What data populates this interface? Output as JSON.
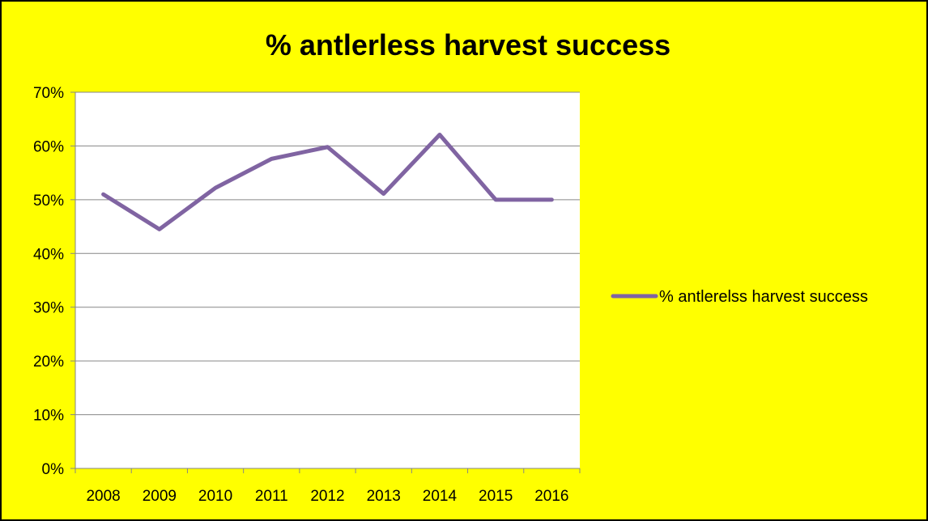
{
  "chart_data": {
    "type": "line",
    "title": "% antlerless harvest success",
    "categories": [
      "2008",
      "2009",
      "2010",
      "2011",
      "2012",
      "2013",
      "2014",
      "2015",
      "2016"
    ],
    "series": [
      {
        "name": "% antlerelss harvest success",
        "values": [
          51,
          44.5,
          52.2,
          57.6,
          59.8,
          51.1,
          62.1,
          50,
          50
        ]
      }
    ],
    "ylim": [
      0,
      70
    ],
    "yticks": [
      "0%",
      "10%",
      "20%",
      "30%",
      "40%",
      "50%",
      "60%",
      "70%"
    ],
    "xlabel": "",
    "ylabel": "",
    "grid": true,
    "legend": "right",
    "colors": {
      "background": "#FFFF00",
      "plot_area": "#FFFFFF",
      "line": "#8064A2",
      "gridline": "#868686",
      "border": "#000000"
    }
  }
}
